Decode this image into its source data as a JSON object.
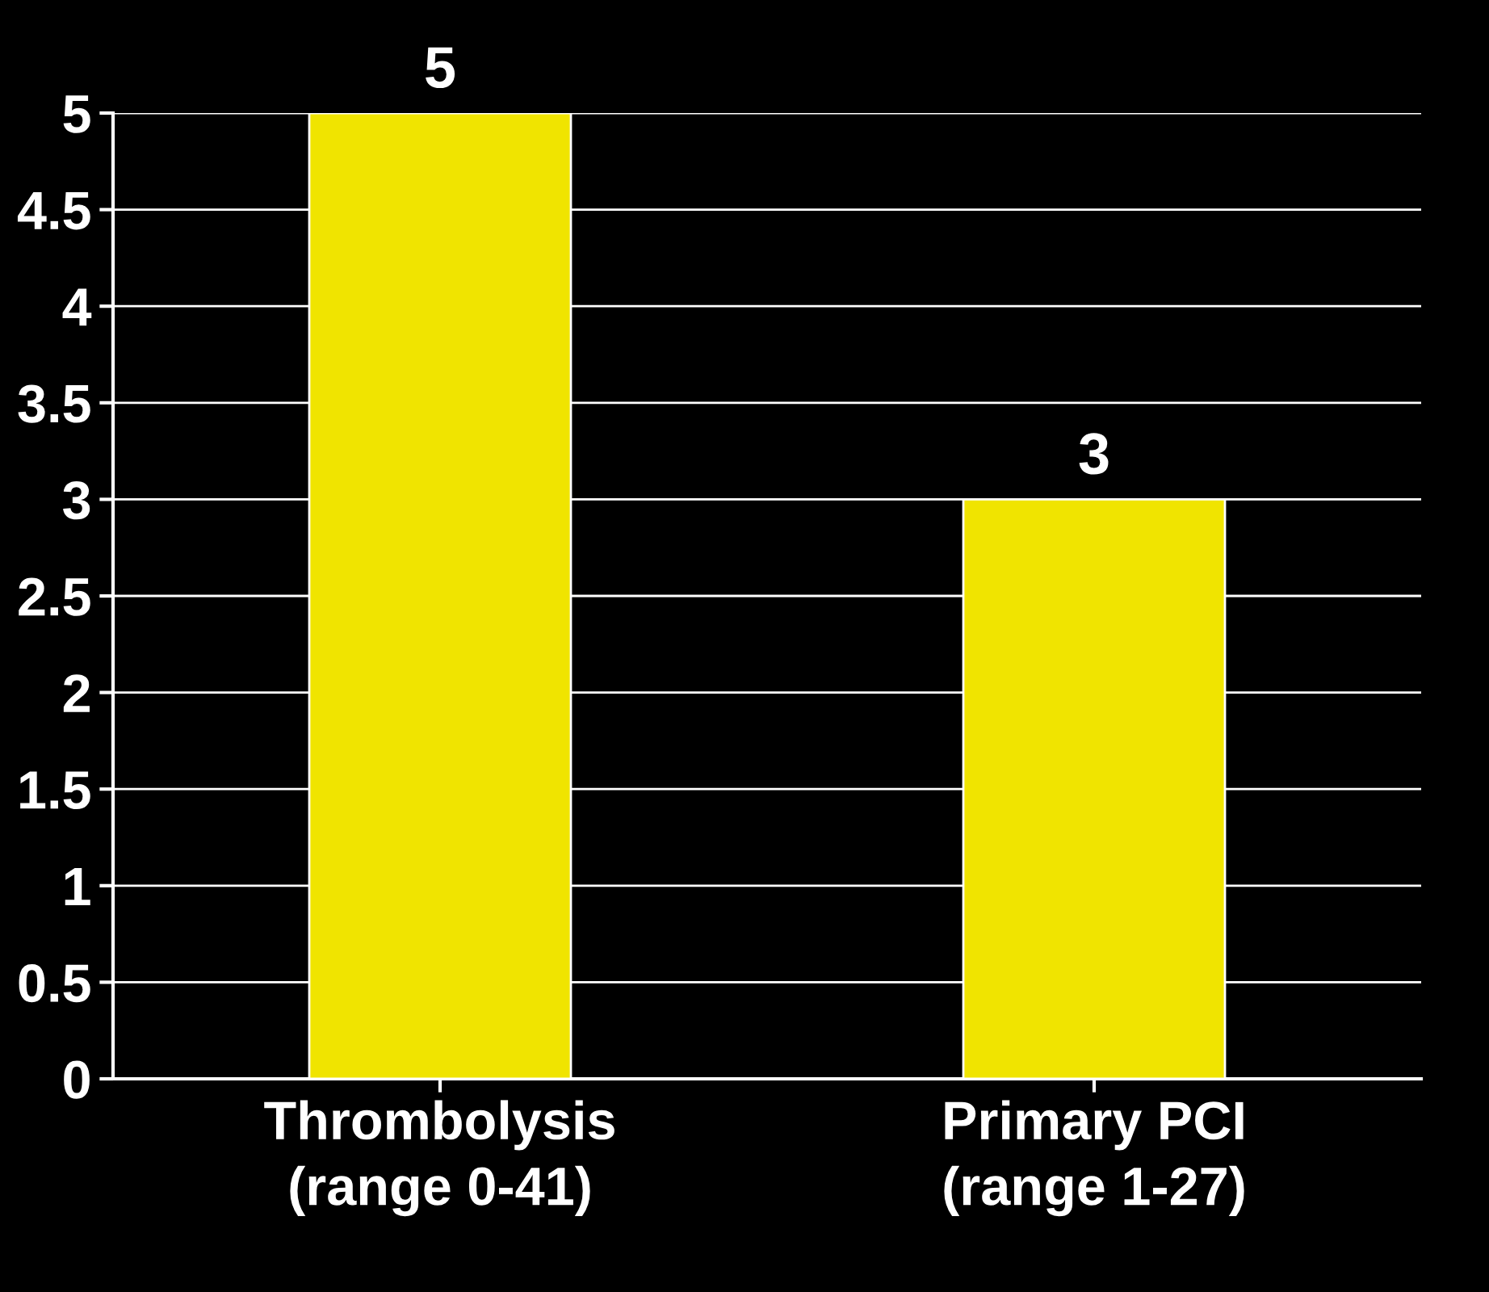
{
  "chart_data": {
    "type": "bar",
    "categories": [
      "Thrombolysis\n(range 0-41)",
      "Primary PCI\n(range 1-27)"
    ],
    "values": [
      5,
      3
    ],
    "color": "#f0e400",
    "ylim": [
      0,
      5
    ],
    "yticks": [
      0,
      0.5,
      1,
      1.5,
      2,
      2.5,
      3,
      3.5,
      4,
      4.5,
      5
    ],
    "grid": "y",
    "data_labels": true
  }
}
